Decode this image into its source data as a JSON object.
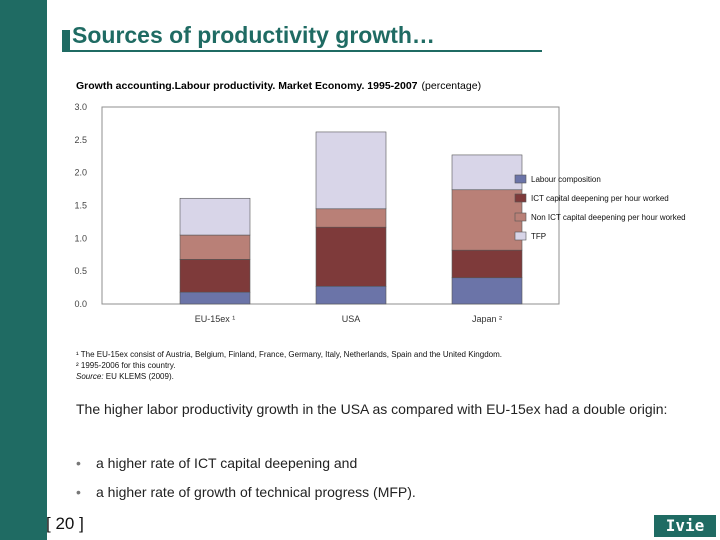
{
  "slide": {
    "title": "Sources of productivity growth…",
    "page_number": "[ 20 ]",
    "logo_text": "Ivie",
    "notes": [
      "¹ The EU-15ex consist of Austria, Belgium, Finland, France, Germany, Italy, Netherlands, Spain and the United Kingdom.",
      "² 1995-2006 for this country."
    ],
    "source_label": "Source:",
    "source_text": " EU KLEMS (2009).",
    "paragraph": "The higher labor productivity growth in the USA as compared with EU-15ex had a double origin:",
    "bullets": [
      "a higher rate of ICT capital deepening and",
      "a higher rate of growth of technical progress (MFP)."
    ]
  },
  "chart_data": {
    "type": "bar",
    "stacked": true,
    "title": "Growth accounting.Labour productivity. Market Economy. 1995-2007",
    "subtitle": "(percentage)",
    "categories": [
      "EU-15ex ¹",
      "USA",
      "Japan ²"
    ],
    "yticks": [
      "3.0",
      "2.5",
      "2.0",
      "1.5",
      "1.0",
      "0.5",
      "0.0"
    ],
    "ylim": [
      0,
      3.0
    ],
    "series": [
      {
        "name": "Labour composition",
        "color": "#6b74a8",
        "values": [
          0.18,
          0.27,
          0.4
        ]
      },
      {
        "name": "ICT capital deepening per hour worked",
        "color": "#7e3a3a",
        "values": [
          0.5,
          0.9,
          0.42
        ]
      },
      {
        "name": "Non ICT capital deepening per hour worked",
        "color": "#b98077",
        "values": [
          0.37,
          0.28,
          0.92
        ]
      },
      {
        "name": "TFP",
        "color": "#d8d5e8",
        "values": [
          0.56,
          1.17,
          0.53
        ]
      }
    ],
    "legend_position": "right",
    "grid": false
  }
}
